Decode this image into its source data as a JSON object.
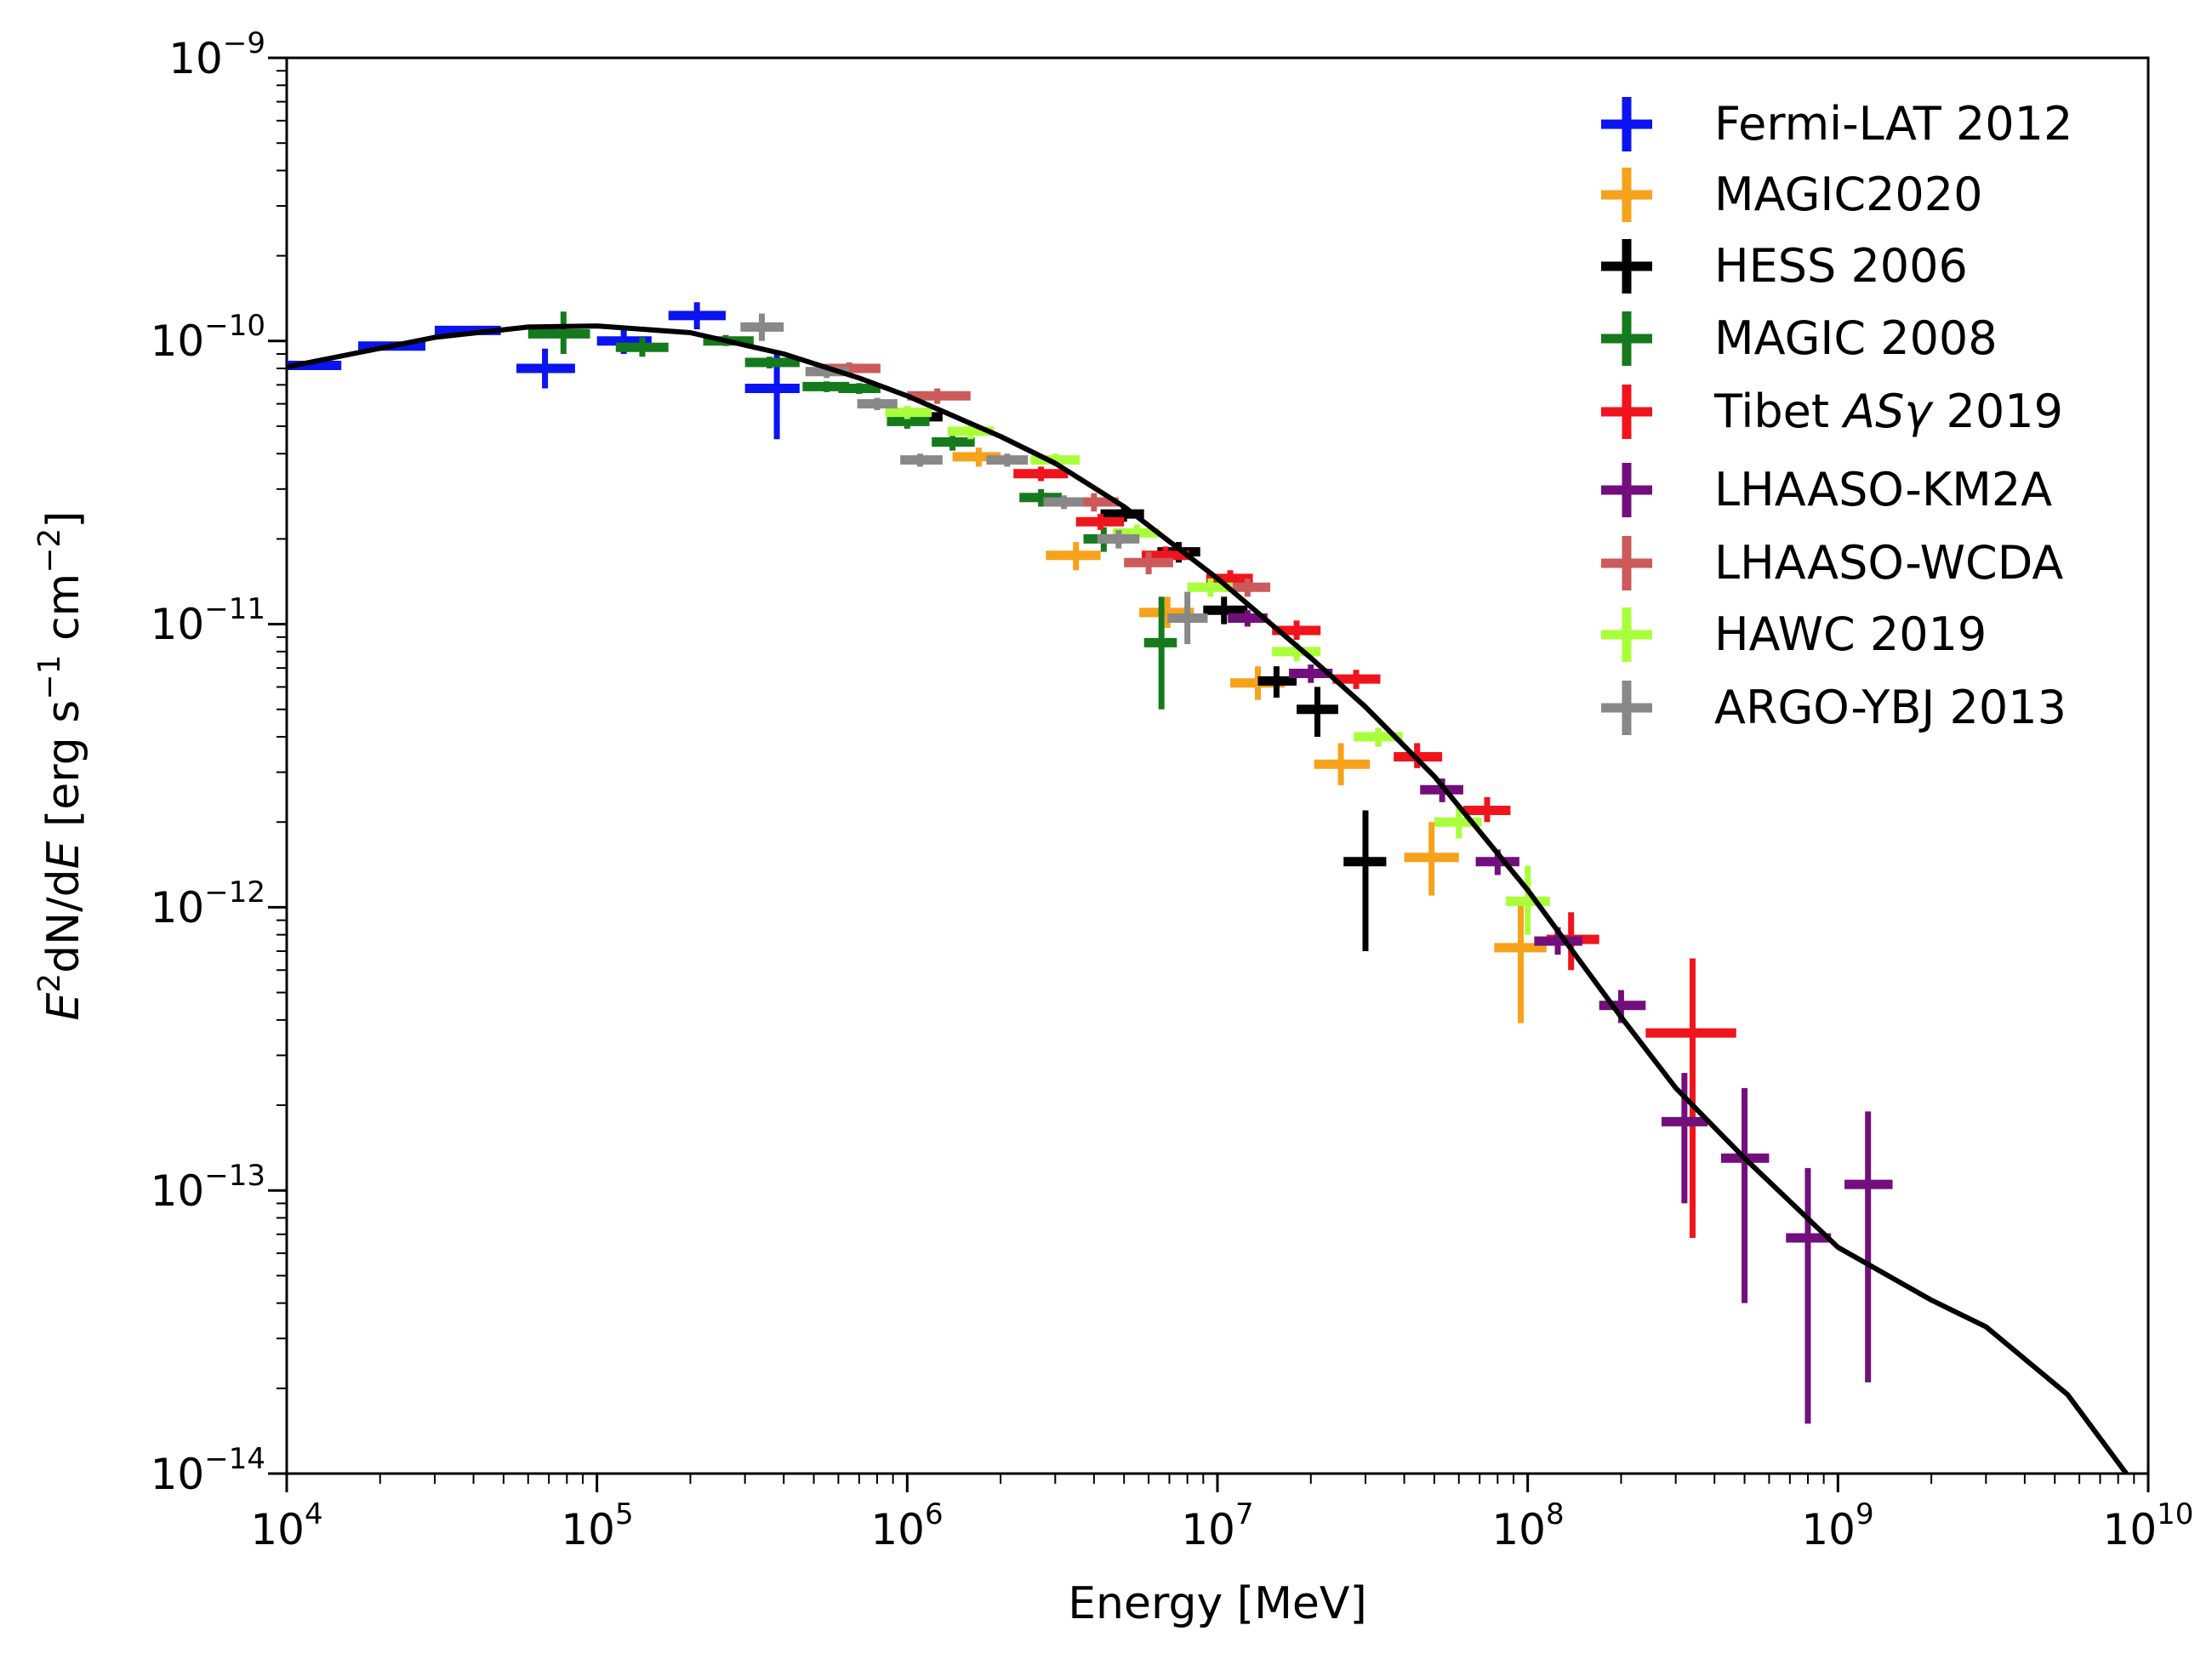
{
  "chart_data": {
    "type": "scatter",
    "title": "",
    "xlabel": "Energy [MeV]",
    "ylabel": "E²dN/dE [erg s⁻¹ cm⁻²]",
    "ylabel_parts": {
      "e": "E",
      "sq": "2",
      "dn": "dN/d",
      "e2": "E",
      "units_open": " [erg s",
      "minus1": "−1",
      "units_mid": " cm",
      "minus2": "−2",
      "units_close": "]"
    },
    "xscale": "log",
    "yscale": "log",
    "xlim": [
      10000,
      10000000000
    ],
    "ylim": [
      1e-14,
      1e-09
    ],
    "x_ticks": [
      {
        "value": 10000,
        "base": "10",
        "exp": "4"
      },
      {
        "value": 100000,
        "base": "10",
        "exp": "5"
      },
      {
        "value": 1000000,
        "base": "10",
        "exp": "6"
      },
      {
        "value": 10000000,
        "base": "10",
        "exp": "7"
      },
      {
        "value": 100000000,
        "base": "10",
        "exp": "8"
      },
      {
        "value": 1000000000,
        "base": "10",
        "exp": "9"
      },
      {
        "value": 10000000000,
        "base": "10",
        "exp": "10"
      }
    ],
    "y_ticks": [
      {
        "value": 1e-14,
        "base": "10",
        "exp": "−14"
      },
      {
        "value": 1e-13,
        "base": "10",
        "exp": "−13"
      },
      {
        "value": 1e-12,
        "base": "10",
        "exp": "−12"
      },
      {
        "value": 1e-11,
        "base": "10",
        "exp": "−11"
      },
      {
        "value": 1e-10,
        "base": "10",
        "exp": "−10"
      },
      {
        "value": 1e-09,
        "base": "10",
        "exp": "−9"
      }
    ],
    "legend_position": "top-right",
    "model_curve": {
      "name": "model",
      "color": "#000000",
      "x": [
        10000,
        30000,
        60000,
        100000,
        200000,
        400000,
        700000,
        1000000,
        2000000,
        3000000,
        5000000,
        10000000,
        20000000,
        30000000,
        50000000,
        100000000,
        200000000,
        300000000,
        500000000,
        1000000000,
        2000000000,
        3000000000,
        5500000000,
        8500000000
      ],
      "y": [
        8.1e-11,
        1.03e-10,
        1.12e-10,
        1.13e-10,
        1.07e-10,
        9e-11,
        7.4e-11,
        6.4e-11,
        4.6e-11,
        3.7e-11,
        2.6e-11,
        1.45e-11,
        7.6e-12,
        5.1e-12,
        2.9e-12,
        1.15e-12,
        4.1e-13,
        2.3e-13,
        1.3e-13,
        6.3e-14,
        4.1e-14,
        3.3e-14,
        1.9e-14,
        1e-14
      ]
    },
    "series": [
      {
        "name": "Fermi-LAT 2012",
        "color": "#0a14f0",
        "points": [
          {
            "x": 12000,
            "y": 8.2e-11,
            "xlo": 10000,
            "xhi": 15000,
            "ylo": 8e-11,
            "yhi": 8.4e-11
          },
          {
            "x": 22000,
            "y": 9.6e-11,
            "xlo": 17000,
            "xhi": 28000,
            "ylo": 9.3e-11,
            "yhi": 9.9e-11
          },
          {
            "x": 38000,
            "y": 1.09e-10,
            "xlo": 30000,
            "xhi": 49000,
            "ylo": 1.05e-10,
            "yhi": 1.13e-10
          },
          {
            "x": 68000,
            "y": 8e-11,
            "xlo": 55000,
            "xhi": 85000,
            "ylo": 6.8e-11,
            "yhi": 9.4e-11
          },
          {
            "x": 122000,
            "y": 1e-10,
            "xlo": 100000,
            "xhi": 150000,
            "ylo": 9e-11,
            "yhi": 1.11e-10
          },
          {
            "x": 210000,
            "y": 1.23e-10,
            "xlo": 170000,
            "xhi": 260000,
            "ylo": 1.1e-10,
            "yhi": 1.37e-10
          },
          {
            "x": 380000,
            "y": 6.8e-11,
            "xlo": 300000,
            "xhi": 450000,
            "ylo": 4.5e-11,
            "yhi": 9e-11
          }
        ]
      },
      {
        "name": "MAGIC2020",
        "color": "#f7a21b",
        "points": [
          {
            "x": 1700000,
            "y": 3.9e-11,
            "xlo": 1400000,
            "xhi": 2000000,
            "ylo": 3.6e-11,
            "yhi": 4.2e-11
          },
          {
            "x": 3500000,
            "y": 1.75e-11,
            "xlo": 2800000,
            "xhi": 4200000,
            "ylo": 1.55e-11,
            "yhi": 1.95e-11
          },
          {
            "x": 6900000,
            "y": 1.1e-11,
            "xlo": 5600000,
            "xhi": 8400000,
            "ylo": 9.7e-12,
            "yhi": 1.25e-11
          },
          {
            "x": 13500000,
            "y": 6.2e-12,
            "xlo": 11000000,
            "xhi": 16500000,
            "ylo": 5.4e-12,
            "yhi": 7.1e-12
          },
          {
            "x": 25000000,
            "y": 3.2e-12,
            "xlo": 20500000,
            "xhi": 31000000,
            "ylo": 2.7e-12,
            "yhi": 3.8e-12
          },
          {
            "x": 49000000,
            "y": 1.5e-12,
            "xlo": 40000000,
            "xhi": 60000000,
            "ylo": 1.1e-12,
            "yhi": 2e-12
          },
          {
            "x": 95000000,
            "y": 7.2e-13,
            "xlo": 78000000,
            "xhi": 115000000,
            "ylo": 3.9e-13,
            "yhi": 1.05e-12
          }
        ]
      },
      {
        "name": "HESS 2006",
        "color": "#000000",
        "points": [
          {
            "x": 1100000,
            "y": 5.4e-11,
            "xlo": 950000,
            "xhi": 1300000,
            "ylo": 5.2e-11,
            "yhi": 5.6e-11
          },
          {
            "x": 5000000,
            "y": 2.45e-11,
            "xlo": 4200000,
            "xhi": 5800000,
            "ylo": 2.3e-11,
            "yhi": 2.6e-11
          },
          {
            "x": 7500000,
            "y": 1.8e-11,
            "xlo": 6400000,
            "xhi": 8800000,
            "ylo": 1.65e-11,
            "yhi": 1.95e-11
          },
          {
            "x": 10500000,
            "y": 1.12e-11,
            "xlo": 9000000,
            "xhi": 12500000,
            "ylo": 1e-11,
            "yhi": 1.25e-11
          },
          {
            "x": 15500000,
            "y": 6.3e-12,
            "xlo": 13500000,
            "xhi": 18000000,
            "ylo": 5.5e-12,
            "yhi": 7.1e-12
          },
          {
            "x": 21000000,
            "y": 5e-12,
            "xlo": 18000000,
            "xhi": 24500000,
            "ylo": 4e-12,
            "yhi": 6e-12
          },
          {
            "x": 30000000,
            "y": 1.45e-12,
            "xlo": 25500000,
            "xhi": 35000000,
            "ylo": 7e-13,
            "yhi": 2.2e-12
          }
        ]
      },
      {
        "name": "MAGIC 2008",
        "color": "#157a1d",
        "points": [
          {
            "x": 78000,
            "y": 1.06e-10,
            "xlo": 60000,
            "xhi": 95000,
            "ylo": 9e-11,
            "yhi": 1.27e-10
          },
          {
            "x": 140000,
            "y": 9.5e-11,
            "xlo": 115000,
            "xhi": 170000,
            "ylo": 8.8e-11,
            "yhi": 1.03e-10
          },
          {
            "x": 260000,
            "y": 1e-10,
            "xlo": 220000,
            "xhi": 320000,
            "ylo": 9.6e-11,
            "yhi": 1.05e-10
          },
          {
            "x": 360000,
            "y": 8.4e-11,
            "xlo": 300000,
            "xhi": 450000,
            "ylo": 8e-11,
            "yhi": 8.8e-11
          },
          {
            "x": 550000,
            "y": 6.9e-11,
            "xlo": 460000,
            "xhi": 650000,
            "ylo": 6.6e-11,
            "yhi": 7.2e-11
          },
          {
            "x": 700000,
            "y": 6.8e-11,
            "xlo": 600000,
            "xhi": 820000,
            "ylo": 6.5e-11,
            "yhi": 7.1e-11
          },
          {
            "x": 1000000,
            "y": 5.2e-11,
            "xlo": 860000,
            "xhi": 1180000,
            "ylo": 4.9e-11,
            "yhi": 5.5e-11
          },
          {
            "x": 1400000,
            "y": 4.4e-11,
            "xlo": 1200000,
            "xhi": 1650000,
            "ylo": 4.1e-11,
            "yhi": 4.7e-11
          },
          {
            "x": 2700000,
            "y": 2.8e-11,
            "xlo": 2300000,
            "xhi": 3150000,
            "ylo": 2.6e-11,
            "yhi": 3e-11
          },
          {
            "x": 4300000,
            "y": 2e-11,
            "xlo": 3700000,
            "xhi": 5000000,
            "ylo": 1.8e-11,
            "yhi": 2.2e-11
          },
          {
            "x": 6600000,
            "y": 8.6e-12,
            "xlo": 5800000,
            "xhi": 7400000,
            "ylo": 5e-12,
            "yhi": 1.25e-11
          }
        ]
      },
      {
        "name": "Tibet ASγ 2019",
        "color": "#f0141c",
        "points": [
          {
            "x": 2700000,
            "y": 3.4e-11,
            "xlo": 2200000,
            "xhi": 3300000,
            "ylo": 3.2e-11,
            "yhi": 3.6e-11
          },
          {
            "x": 4200000,
            "y": 2.3e-11,
            "xlo": 3500000,
            "xhi": 5000000,
            "ylo": 2.15e-11,
            "yhi": 2.45e-11
          },
          {
            "x": 6800000,
            "y": 1.75e-11,
            "xlo": 5700000,
            "xhi": 8100000,
            "ylo": 1.62e-11,
            "yhi": 1.88e-11
          },
          {
            "x": 11000000,
            "y": 1.45e-11,
            "xlo": 9200000,
            "xhi": 13000000,
            "ylo": 1.35e-11,
            "yhi": 1.55e-11
          },
          {
            "x": 18000000,
            "y": 9.5e-12,
            "xlo": 15000000,
            "xhi": 21500000,
            "ylo": 8.8e-12,
            "yhi": 1.03e-11
          },
          {
            "x": 28000000,
            "y": 6.4e-12,
            "xlo": 23500000,
            "xhi": 33500000,
            "ylo": 5.9e-12,
            "yhi": 6.9e-12
          },
          {
            "x": 44000000,
            "y": 3.4e-12,
            "xlo": 37000000,
            "xhi": 53000000,
            "ylo": 3.1e-12,
            "yhi": 3.8e-12
          },
          {
            "x": 74000000,
            "y": 2.2e-12,
            "xlo": 62000000,
            "xhi": 88000000,
            "ylo": 2e-12,
            "yhi": 2.45e-12
          },
          {
            "x": 138000000,
            "y": 7.7e-13,
            "xlo": 115000000,
            "xhi": 170000000,
            "ylo": 6e-13,
            "yhi": 9.6e-13
          },
          {
            "x": 340000000,
            "y": 3.6e-13,
            "xlo": 240000000,
            "xhi": 470000000,
            "ylo": 6.8e-14,
            "yhi": 6.6e-13
          }
        ]
      },
      {
        "name": "LHAASO-KM2A",
        "color": "#720f7c",
        "points": [
          {
            "x": 12500000,
            "y": 1.05e-11,
            "xlo": 10800000,
            "xhi": 14500000,
            "ylo": 9.8e-12,
            "yhi": 1.12e-11
          },
          {
            "x": 20000000,
            "y": 6.7e-12,
            "xlo": 17000000,
            "xhi": 23500000,
            "ylo": 6.2e-12,
            "yhi": 7.2e-12
          },
          {
            "x": 33000000,
            "y": 4e-12,
            "xlo": 28000000,
            "xhi": 39000000,
            "ylo": 3.7e-12,
            "yhi": 4.3e-12
          },
          {
            "x": 53000000,
            "y": 2.6e-12,
            "xlo": 45000000,
            "xhi": 62000000,
            "ylo": 2.35e-12,
            "yhi": 2.85e-12
          },
          {
            "x": 80000000,
            "y": 1.45e-12,
            "xlo": 68000000,
            "xhi": 94000000,
            "ylo": 1.3e-12,
            "yhi": 1.6e-12
          },
          {
            "x": 125000000,
            "y": 7.6e-13,
            "xlo": 105000000,
            "xhi": 150000000,
            "ylo": 6.8e-13,
            "yhi": 8.5e-13
          },
          {
            "x": 200000000,
            "y": 4.5e-13,
            "xlo": 170000000,
            "xhi": 240000000,
            "ylo": 3.9e-13,
            "yhi": 5.1e-13
          },
          {
            "x": 320000000,
            "y": 1.75e-13,
            "xlo": 270000000,
            "xhi": 380000000,
            "ylo": 9e-14,
            "yhi": 2.6e-13
          },
          {
            "x": 500000000,
            "y": 1.3e-13,
            "xlo": 420000000,
            "xhi": 600000000,
            "ylo": 4e-14,
            "yhi": 2.3e-13
          },
          {
            "x": 800000000,
            "y": 6.8e-14,
            "xlo": 680000000,
            "xhi": 950000000,
            "ylo": 1.5e-14,
            "yhi": 1.2e-13
          },
          {
            "x": 1250000000,
            "y": 1.05e-13,
            "xlo": 1050000000,
            "xhi": 1500000000,
            "ylo": 2.1e-14,
            "yhi": 1.9e-13
          }
        ]
      },
      {
        "name": "LHAASO-WCDA",
        "color": "#cc5a5a",
        "points": [
          {
            "x": 650000,
            "y": 8e-11,
            "xlo": 520000,
            "xhi": 820000,
            "ylo": 7.6e-11,
            "yhi": 8.4e-11
          },
          {
            "x": 1250000,
            "y": 6.4e-11,
            "xlo": 1000000,
            "xhi": 1600000,
            "ylo": 6e-11,
            "yhi": 6.8e-11
          },
          {
            "x": 4000000,
            "y": 2.7e-11,
            "xlo": 3300000,
            "xhi": 4800000,
            "ylo": 2.5e-11,
            "yhi": 2.9e-11
          },
          {
            "x": 6000000,
            "y": 1.65e-11,
            "xlo": 5000000,
            "xhi": 7200000,
            "ylo": 1.5e-11,
            "yhi": 1.8e-11
          },
          {
            "x": 12500000,
            "y": 1.35e-11,
            "xlo": 10500000,
            "xhi": 14800000,
            "ylo": 1.25e-11,
            "yhi": 1.45e-11
          }
        ]
      },
      {
        "name": "HAWC 2019",
        "color": "#a9ff3a",
        "points": [
          {
            "x": 1000000,
            "y": 5.6e-11,
            "xlo": 850000,
            "xhi": 1200000,
            "ylo": 5.3e-11,
            "yhi": 5.9e-11
          },
          {
            "x": 1600000,
            "y": 4.8e-11,
            "xlo": 1350000,
            "xhi": 1900000,
            "ylo": 4.5e-11,
            "yhi": 5.1e-11
          },
          {
            "x": 3000000,
            "y": 3.8e-11,
            "xlo": 2500000,
            "xhi": 3600000,
            "ylo": 3.6e-11,
            "yhi": 4e-11
          },
          {
            "x": 5500000,
            "y": 2.1e-11,
            "xlo": 4600000,
            "xhi": 6500000,
            "ylo": 1.95e-11,
            "yhi": 2.25e-11
          },
          {
            "x": 9500000,
            "y": 1.35e-11,
            "xlo": 8000000,
            "xhi": 11200000,
            "ylo": 1.25e-11,
            "yhi": 1.45e-11
          },
          {
            "x": 18000000,
            "y": 8e-12,
            "xlo": 15000000,
            "xhi": 21500000,
            "ylo": 7.4e-12,
            "yhi": 8.6e-12
          },
          {
            "x": 33000000,
            "y": 4e-12,
            "xlo": 27500000,
            "xhi": 39500000,
            "ylo": 3.7e-12,
            "yhi": 4.3e-12
          },
          {
            "x": 60000000,
            "y": 2e-12,
            "xlo": 50000000,
            "xhi": 71000000,
            "ylo": 1.75e-12,
            "yhi": 2.3e-12
          },
          {
            "x": 100000000,
            "y": 1.05e-12,
            "xlo": 85000000,
            "xhi": 118000000,
            "ylo": 8e-13,
            "yhi": 1.4e-12
          }
        ]
      },
      {
        "name": "ARGO-YBJ 2013",
        "color": "#888888",
        "points": [
          {
            "x": 340000,
            "y": 1.12e-10,
            "xlo": 290000,
            "xhi": 400000,
            "ylo": 1e-10,
            "yhi": 1.25e-10
          },
          {
            "x": 550000,
            "y": 7.8e-11,
            "xlo": 470000,
            "xhi": 650000,
            "ylo": 7.4e-11,
            "yhi": 8.2e-11
          },
          {
            "x": 800000,
            "y": 6e-11,
            "xlo": 690000,
            "xhi": 930000,
            "ylo": 5.7e-11,
            "yhi": 6.3e-11
          },
          {
            "x": 1100000,
            "y": 3.8e-11,
            "xlo": 950000,
            "xhi": 1300000,
            "ylo": 3.6e-11,
            "yhi": 4e-11
          },
          {
            "x": 2100000,
            "y": 3.8e-11,
            "xlo": 1800000,
            "xhi": 2450000,
            "ylo": 3.6e-11,
            "yhi": 4e-11
          },
          {
            "x": 3200000,
            "y": 2.7e-11,
            "xlo": 2750000,
            "xhi": 3700000,
            "ylo": 2.55e-11,
            "yhi": 2.85e-11
          },
          {
            "x": 4800000,
            "y": 2e-11,
            "xlo": 4100000,
            "xhi": 5600000,
            "ylo": 1.85e-11,
            "yhi": 2.15e-11
          },
          {
            "x": 8000000,
            "y": 1.05e-11,
            "xlo": 6900000,
            "xhi": 9300000,
            "ylo": 8.5e-12,
            "yhi": 1.3e-11
          }
        ]
      }
    ],
    "legend_labels": {
      "fermi": "Fermi-LAT 2012",
      "magic2020": "MAGIC2020",
      "hess": "HESS 2006",
      "magic2008": "MAGIC 2008",
      "tibet_pre": "Tibet ",
      "tibet_it": "ASγ",
      "tibet_post": " 2019",
      "km2a": "LHAASO-KM2A",
      "wcda": "LHAASO-WCDA",
      "hawc": "HAWC 2019",
      "argo": "ARGO-YBJ 2013"
    }
  }
}
